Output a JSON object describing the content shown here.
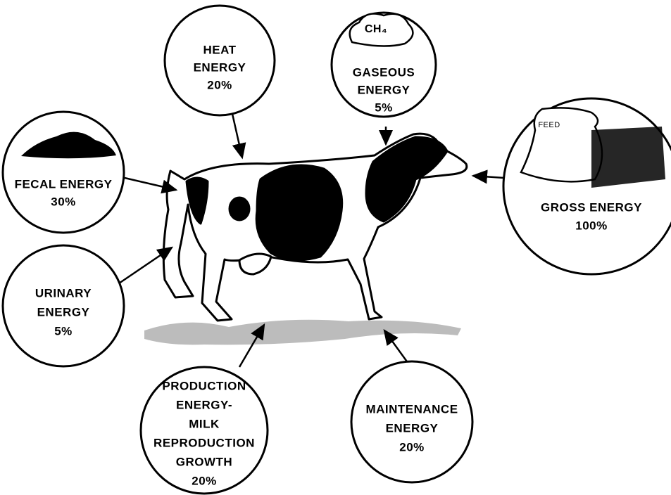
{
  "nodes": [
    {
      "lines": [
        "HEAT",
        "ENERGY",
        "20%"
      ]
    },
    {
      "lines": [
        "GASEOUS",
        "ENERGY",
        "5%"
      ],
      "icon_label": "CH₄"
    },
    {
      "lines": [
        "FECAL ENERGY",
        "30%"
      ]
    },
    {
      "lines": [
        "GROSS ENERGY",
        "100%"
      ],
      "icon_label": "FEED"
    },
    {
      "lines": [
        "URINARY",
        "ENERGY",
        "5%"
      ]
    },
    {
      "lines": [
        "PRODUCTION",
        "ENERGY-",
        "MILK",
        "REPRODUCTION",
        "GROWTH",
        "20%"
      ]
    },
    {
      "lines": [
        "MAINTENANCE",
        "ENERGY",
        "20%"
      ]
    }
  ]
}
